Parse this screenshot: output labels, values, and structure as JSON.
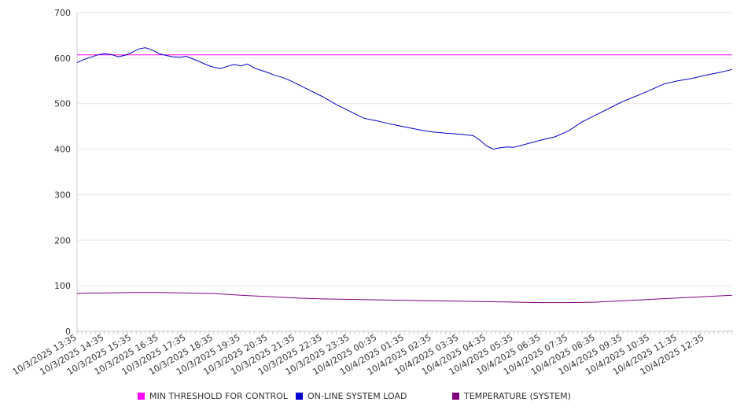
{
  "chart_data": {
    "type": "line",
    "ylim": [
      0,
      700
    ],
    "y_ticks": [
      0,
      100,
      200,
      300,
      400,
      500,
      600,
      700
    ],
    "x_tick_labels": [
      "10/3/2025 13:35",
      "10/3/2025 14:35",
      "10/3/2025 15:35",
      "10/3/2025 16:35",
      "10/3/2025 17:35",
      "10/3/2025 18:35",
      "10/3/2025 19:35",
      "10/3/2025 20:35",
      "10/3/2025 21:35",
      "10/3/2025 22:35",
      "10/3/2025 23:35",
      "10/4/2025 00:35",
      "10/4/2025 01:35",
      "10/4/2025 02:35",
      "10/4/2025 03:35",
      "10/4/2025 04:35",
      "10/4/2025 05:35",
      "10/4/2025 06:35",
      "10/4/2025 07:35",
      "10/4/2025 08:35",
      "10/4/2025 09:35",
      "10/4/2025 10:35",
      "10/4/2025 11:35",
      "10/4/2025 12:35"
    ],
    "x_range_hours": [
      0,
      24
    ],
    "grid": "horizontal",
    "legend_placement": "bottom",
    "series": [
      {
        "name": "MIN THRESHOLD FOR CONTROL",
        "color": "#ff00ff",
        "x": [
          0,
          24
        ],
        "values": [
          607,
          607
        ]
      },
      {
        "name": "ON-LINE SYSTEM LOAD",
        "color": "#0000cc",
        "x": [
          0,
          0.25,
          0.5,
          0.75,
          1.0,
          1.25,
          1.5,
          1.75,
          2.0,
          2.25,
          2.5,
          2.75,
          3.0,
          3.25,
          3.5,
          3.75,
          4.0,
          4.25,
          4.5,
          4.75,
          5.0,
          5.25,
          5.5,
          5.75,
          6.0,
          6.25,
          6.5,
          6.75,
          7.0,
          7.25,
          7.5,
          7.75,
          8.0,
          8.5,
          9.0,
          9.5,
          10.0,
          10.5,
          11.0,
          11.5,
          12.0,
          12.5,
          13.0,
          13.5,
          14.0,
          14.5,
          14.75,
          15.0,
          15.25,
          15.5,
          15.75,
          16.0,
          16.5,
          17.0,
          17.5,
          18.0,
          18.5,
          19.0,
          19.5,
          20.0,
          20.5,
          21.0,
          21.5,
          22.0,
          22.5,
          23.0,
          23.5,
          24.0
        ],
        "values": [
          590,
          597,
          602,
          607,
          610,
          608,
          603,
          606,
          612,
          620,
          623,
          618,
          610,
          606,
          603,
          602,
          604,
          598,
          592,
          585,
          580,
          577,
          582,
          586,
          583,
          587,
          578,
          573,
          568,
          562,
          558,
          552,
          545,
          530,
          515,
          498,
          483,
          468,
          462,
          455,
          449,
          443,
          438,
          435,
          433,
          430,
          420,
          407,
          400,
          403,
          405,
          404,
          412,
          420,
          427,
          440,
          460,
          475,
          490,
          505,
          517,
          530,
          543,
          550,
          555,
          562,
          568,
          575
        ]
      },
      {
        "name": "TEMPERATURE (SYSTEM)",
        "color": "#800080",
        "x": [
          0,
          0.5,
          1.0,
          2.0,
          3.0,
          4.0,
          5.0,
          6.0,
          7.0,
          8.0,
          9.0,
          10.0,
          11.0,
          12.0,
          13.0,
          14.0,
          15.0,
          16.0,
          17.0,
          18.0,
          19.0,
          20.0,
          21.0,
          22.0,
          23.0,
          24.0
        ],
        "values": [
          83,
          84,
          84,
          85,
          85,
          84,
          83,
          79,
          76,
          73,
          71,
          70,
          69,
          68,
          67,
          66,
          65,
          64,
          63,
          63,
          64,
          67,
          70,
          73,
          76,
          79
        ]
      }
    ]
  }
}
